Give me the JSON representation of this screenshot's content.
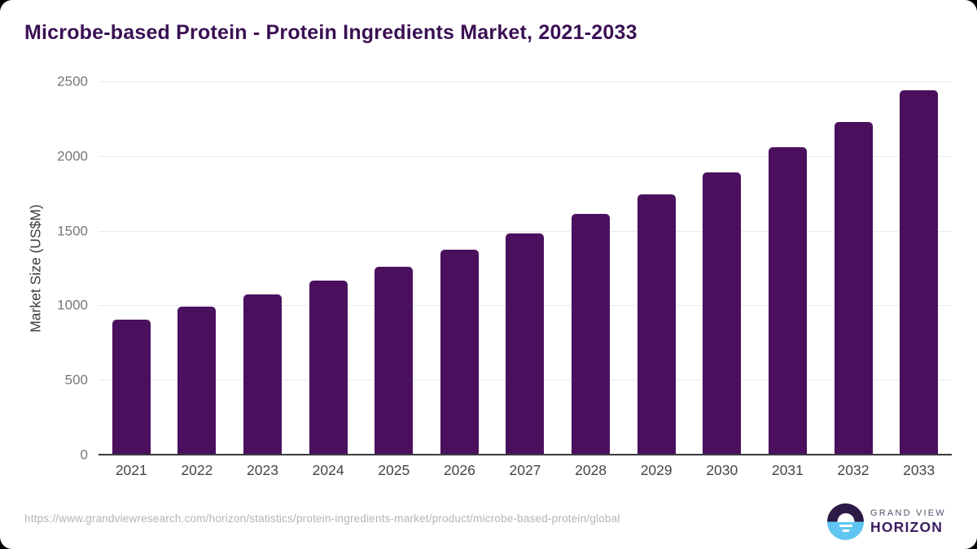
{
  "title": "Microbe-based Protein - Protein Ingredients Market, 2021-2033",
  "chart_data": {
    "type": "bar",
    "title": "Microbe-based Protein - Protein Ingredients Market, 2021-2033",
    "categories": [
      "2021",
      "2022",
      "2023",
      "2024",
      "2025",
      "2026",
      "2027",
      "2028",
      "2029",
      "2030",
      "2031",
      "2032",
      "2033"
    ],
    "values": [
      905,
      990,
      1075,
      1165,
      1260,
      1370,
      1480,
      1610,
      1745,
      1890,
      2060,
      2230,
      2440
    ],
    "xlabel": "",
    "ylabel": "Market Size (US$M)",
    "ylim": [
      0,
      2500
    ],
    "yticks": [
      0,
      500,
      1000,
      1500,
      2000,
      2500
    ],
    "grid": true,
    "legend": false,
    "bar_color": "#4a105e"
  },
  "footer": {
    "source_url": "https://www.grandviewresearch.com/horizon/statistics/protein-ingredients-market/product/microbe-based-protein/global",
    "logo": {
      "line1": "GRAND VIEW",
      "line2": "HORIZON"
    }
  },
  "colors": {
    "title_text": "#3b1053",
    "bar": "#4a105e",
    "gridline": "#ebebeb",
    "axis_line": "#3a3a40",
    "y_tick_text": "#777777",
    "x_tick_text": "#454545",
    "url_text": "#b4b4b4",
    "logo_dark_purple": "#2d1a46",
    "logo_light_blue": "#5fc6f1",
    "logo_horizon_text": "#3a1d5d"
  }
}
